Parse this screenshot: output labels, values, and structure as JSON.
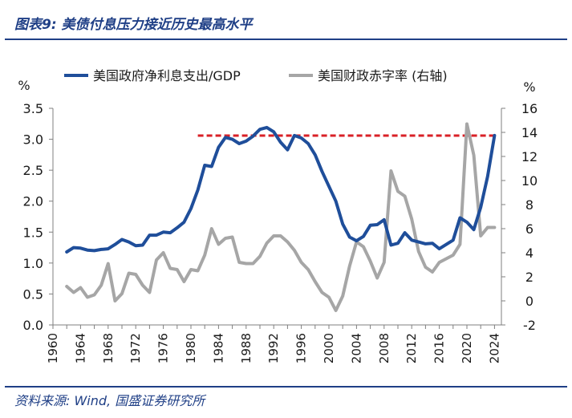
{
  "header": {
    "title": "图表9:  美债付息压力接近历史最高水平"
  },
  "footer": {
    "source": "资料来源:  Wind, 国盛证券研究所"
  },
  "colors": {
    "accent": "#1f3f86",
    "series_left": "#1f4e9a",
    "series_right": "#a6a6a6",
    "reference": "#d92027"
  },
  "chart_data": {
    "type": "line",
    "legend_position": "top",
    "grid": false,
    "x_ticks": [
      1960,
      1964,
      1968,
      1972,
      1976,
      1980,
      1984,
      1988,
      1992,
      1996,
      2000,
      2004,
      2008,
      2012,
      2016,
      2020,
      2024
    ],
    "xlim": [
      1960,
      2025
    ],
    "y_left": {
      "unit": "%",
      "ylim": [
        0,
        3.5
      ],
      "ticks": [
        "0.0",
        "0.5",
        "1.0",
        "1.5",
        "2.0",
        "2.5",
        "3.0",
        "3.5"
      ]
    },
    "y_right": {
      "unit": "%",
      "ylim": [
        -2,
        16
      ],
      "ticks": [
        "-2",
        "0",
        "2",
        "4",
        "6",
        "8",
        "10",
        "12",
        "14",
        "16"
      ]
    },
    "reference_line": {
      "axis": "left",
      "y": 3.06,
      "x_start": 1981,
      "x_end": 2024
    },
    "series": [
      {
        "name": "美国政府净利息支出/GDP",
        "axis": "left",
        "x": [
          1962,
          1963,
          1964,
          1965,
          1966,
          1967,
          1968,
          1969,
          1970,
          1971,
          1972,
          1973,
          1974,
          1975,
          1976,
          1977,
          1978,
          1979,
          1980,
          1981,
          1982,
          1983,
          1984,
          1985,
          1986,
          1987,
          1988,
          1989,
          1990,
          1991,
          1992,
          1993,
          1994,
          1995,
          1996,
          1997,
          1998,
          1999,
          2000,
          2001,
          2002,
          2003,
          2004,
          2005,
          2006,
          2007,
          2008,
          2009,
          2010,
          2011,
          2012,
          2013,
          2014,
          2015,
          2016,
          2017,
          2018,
          2019,
          2020,
          2021,
          2022,
          2023,
          2024
        ],
        "values": [
          1.18,
          1.25,
          1.24,
          1.21,
          1.2,
          1.22,
          1.23,
          1.3,
          1.38,
          1.34,
          1.28,
          1.29,
          1.45,
          1.45,
          1.5,
          1.49,
          1.57,
          1.66,
          1.88,
          2.18,
          2.58,
          2.56,
          2.87,
          3.03,
          3.0,
          2.93,
          2.97,
          3.05,
          3.16,
          3.19,
          3.12,
          2.95,
          2.83,
          3.06,
          3.02,
          2.93,
          2.75,
          2.48,
          2.24,
          2.0,
          1.63,
          1.42,
          1.36,
          1.43,
          1.61,
          1.62,
          1.7,
          1.29,
          1.32,
          1.49,
          1.37,
          1.34,
          1.31,
          1.32,
          1.23,
          1.3,
          1.37,
          1.73,
          1.66,
          1.54,
          1.9,
          2.4,
          3.06
        ]
      },
      {
        "name": "美国财政赤字率 (右轴)",
        "axis": "right",
        "x": [
          1962,
          1963,
          1964,
          1965,
          1966,
          1967,
          1968,
          1969,
          1970,
          1971,
          1972,
          1973,
          1974,
          1975,
          1976,
          1977,
          1978,
          1979,
          1980,
          1981,
          1982,
          1983,
          1984,
          1985,
          1986,
          1987,
          1988,
          1989,
          1990,
          1991,
          1992,
          1993,
          1994,
          1995,
          1996,
          1997,
          1998,
          1999,
          2000,
          2001,
          2002,
          2003,
          2004,
          2005,
          2006,
          2007,
          2008,
          2009,
          2010,
          2011,
          2012,
          2013,
          2014,
          2015,
          2016,
          2017,
          2018,
          2019,
          2020,
          2021,
          2022,
          2023,
          2024
        ],
        "values": [
          1.2,
          0.7,
          1.1,
          0.3,
          0.5,
          1.3,
          3.1,
          0.0,
          0.6,
          2.3,
          2.2,
          1.3,
          0.7,
          3.4,
          4.0,
          2.7,
          2.6,
          1.6,
          2.6,
          2.5,
          3.8,
          6.0,
          4.7,
          5.2,
          5.3,
          3.2,
          3.1,
          3.1,
          3.7,
          4.8,
          5.4,
          5.4,
          4.9,
          4.2,
          3.2,
          2.6,
          1.6,
          0.7,
          0.3,
          -0.8,
          0.4,
          2.9,
          4.9,
          4.5,
          3.3,
          1.9,
          3.2,
          10.8,
          9.1,
          8.7,
          6.8,
          4.1,
          2.8,
          2.4,
          3.2,
          3.5,
          3.8,
          4.7,
          14.7,
          12.1,
          5.4,
          6.1,
          6.1
        ]
      }
    ]
  }
}
